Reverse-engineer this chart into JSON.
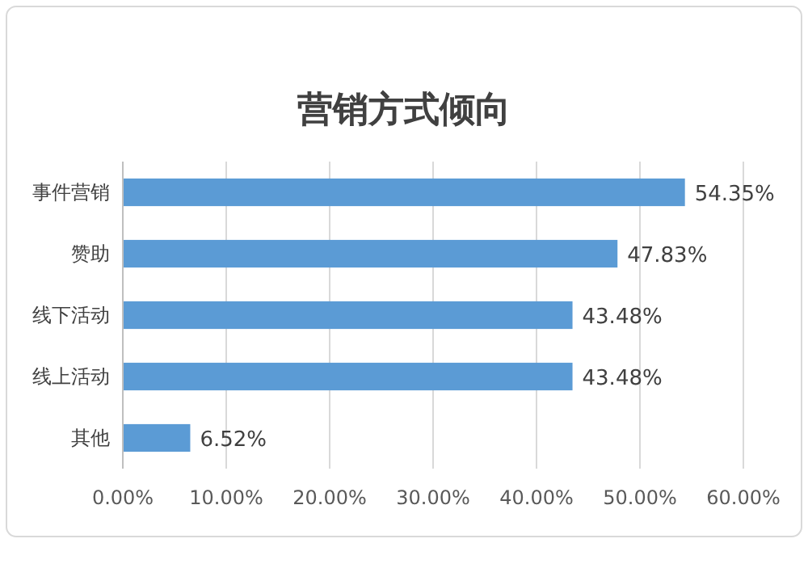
{
  "chart_data": {
    "type": "bar",
    "orientation": "horizontal",
    "title": "营销方式倾向",
    "categories": [
      "事件营销",
      "赞助",
      "线下活动",
      "线上活动",
      "其他"
    ],
    "values": [
      54.35,
      47.83,
      43.48,
      43.48,
      6.52
    ],
    "value_labels": [
      "54.35%",
      "47.83%",
      "43.48%",
      "43.48%",
      "6.52%"
    ],
    "color": "#5b9bd5",
    "xlim": [
      0,
      60
    ],
    "xticks": [
      {
        "value": 0,
        "label": "0.00%"
      },
      {
        "value": 10,
        "label": "10.00%"
      },
      {
        "value": 20,
        "label": "20.00%"
      },
      {
        "value": 30,
        "label": "30.00%"
      },
      {
        "value": 40,
        "label": "40.00%"
      },
      {
        "value": 50,
        "label": "50.00%"
      },
      {
        "value": 60,
        "label": "60.00%"
      }
    ],
    "grid": "x"
  }
}
